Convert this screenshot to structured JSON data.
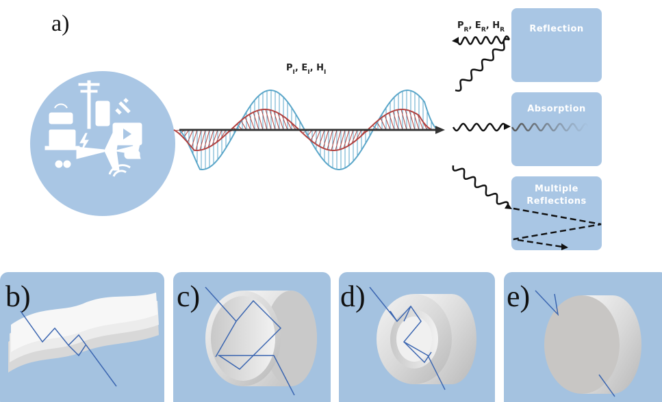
{
  "panel_a": {
    "label": "a)",
    "incident_label": [
      {
        "text": "P"
      },
      {
        "sub": "I"
      },
      {
        "text": ", E"
      },
      {
        "sub": "I"
      },
      {
        "text": ", H"
      },
      {
        "sub": "I"
      }
    ],
    "reflected_label": [
      {
        "text": "P"
      },
      {
        "sub": "R"
      },
      {
        "text": ", E"
      },
      {
        "sub": "R"
      },
      {
        "text": ", H"
      },
      {
        "sub": "R"
      }
    ],
    "boxes": [
      "Reflection",
      "Absorption",
      [
        "Multiple",
        "Reflections"
      ]
    ]
  },
  "panels": [
    "b)",
    "c)",
    "d)",
    "e)"
  ]
}
